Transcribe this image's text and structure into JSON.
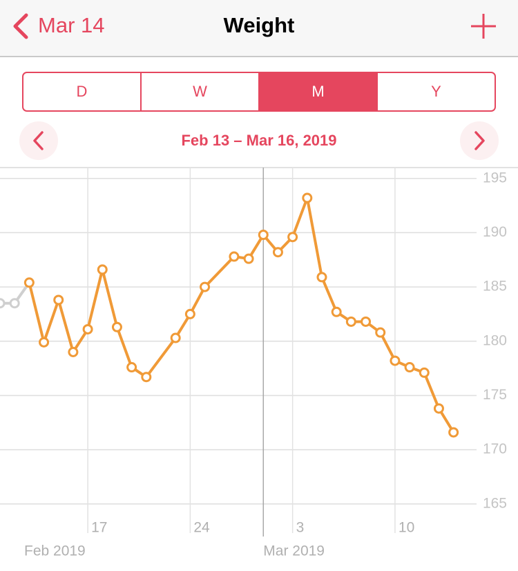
{
  "nav": {
    "back": "Mar 14",
    "title": "Weight"
  },
  "segments": {
    "items": [
      "D",
      "W",
      "M",
      "Y"
    ],
    "selected": 2
  },
  "date_range": "Feb 13 – Mar 16, 2019",
  "chart_data": {
    "type": "line",
    "xlim": [
      "2019-02-11",
      "2019-03-16"
    ],
    "xticks": [
      {
        "value": "2019-02-17",
        "label": "17"
      },
      {
        "value": "2019-02-24",
        "label": "24"
      },
      {
        "value": "2019-03-03",
        "label": "3"
      },
      {
        "value": "2019-03-10",
        "label": "10"
      }
    ],
    "month_labels": [
      {
        "value": "2019-02-01",
        "label": "Feb 2019"
      },
      {
        "value": "2019-03-01",
        "label": "Mar 2019"
      }
    ],
    "ylim": [
      162,
      196
    ],
    "yticks": [
      165,
      170,
      175,
      180,
      185,
      190,
      195
    ],
    "grid": true,
    "series": [
      {
        "color": "#cfcfcf",
        "x": [
          "2019-02-11",
          "2019-02-12"
        ],
        "values": [
          183.5,
          183.5
        ]
      },
      {
        "color": "#f09a37",
        "x": [
          "2019-02-13",
          "2019-02-14",
          "2019-02-15",
          "2019-02-16",
          "2019-02-17",
          "2019-02-18",
          "2019-02-19",
          "2019-02-20",
          "2019-02-21",
          "2019-02-23",
          "2019-02-24",
          "2019-02-25",
          "2019-02-27",
          "2019-02-28",
          "2019-03-01",
          "2019-03-02",
          "2019-03-03",
          "2019-03-04",
          "2019-03-05",
          "2019-03-06",
          "2019-03-07",
          "2019-03-08",
          "2019-03-09",
          "2019-03-10",
          "2019-03-11",
          "2019-03-12",
          "2019-03-13",
          "2019-03-14"
        ],
        "values": [
          185.4,
          179.9,
          183.8,
          179.0,
          181.1,
          186.6,
          181.3,
          177.6,
          176.7,
          180.3,
          182.5,
          185.0,
          187.8,
          187.6,
          189.8,
          188.2,
          189.6,
          193.2,
          185.9,
          182.7,
          181.8,
          181.8,
          180.8,
          178.2,
          177.6,
          177.1,
          173.8,
          171.6
        ]
      }
    ]
  }
}
